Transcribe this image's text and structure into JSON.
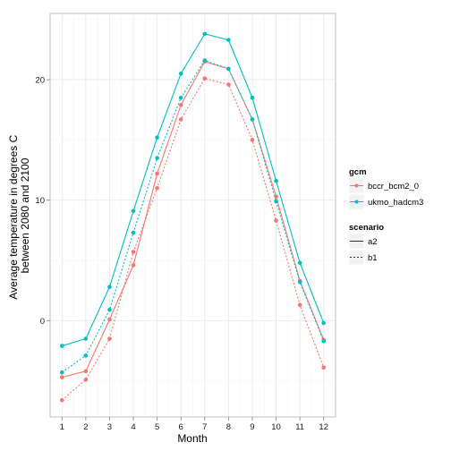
{
  "chart_data": {
    "type": "line",
    "title": "",
    "xlabel": "Month",
    "ylabel_lines": [
      "Average temperature in degrees C",
      "between 2080 and 2100"
    ],
    "x": [
      1,
      2,
      3,
      4,
      5,
      6,
      7,
      8,
      9,
      10,
      11,
      12
    ],
    "x_tick_labels": [
      "1",
      "2",
      "3",
      "4",
      "5",
      "6",
      "7",
      "8",
      "9",
      "10",
      "11",
      "12"
    ],
    "xlim": [
      0.5,
      12.5
    ],
    "ylim": [
      -8,
      25.5
    ],
    "y_ticks": [
      0,
      10,
      20
    ],
    "y_tick_labels": [
      "0",
      "10",
      "20"
    ],
    "grid": true,
    "legend_position": "right",
    "colors": {
      "bccr_bcm2_0": "#F8766D",
      "ukmo_hadcm3": "#00BFC4",
      "panel_background": "#FFFFFF",
      "panel_border": "#B3B3B3",
      "grid_major": "#E8E8E8",
      "grid_minor": "#F5F5F5"
    },
    "series": [
      {
        "name": "bccr_bcm2_0 a2",
        "gcm": "bccr_bcm2_0",
        "scenario": "a2",
        "values": [
          -4.7,
          -4.2,
          0.1,
          4.6,
          12.2,
          17.9,
          21.5,
          20.9,
          16.7,
          10.3,
          3.3,
          -1.6
        ]
      },
      {
        "name": "bccr_bcm2_0 b1",
        "gcm": "bccr_bcm2_0",
        "scenario": "b1",
        "values": [
          -6.6,
          -4.9,
          -1.5,
          5.7,
          11.0,
          16.7,
          20.1,
          19.6,
          15.0,
          8.3,
          1.3,
          -3.9
        ]
      },
      {
        "name": "ukmo_hadcm3 a2",
        "gcm": "ukmo_hadcm3",
        "scenario": "a2",
        "values": [
          -2.1,
          -1.5,
          2.8,
          9.1,
          15.2,
          20.5,
          23.8,
          23.3,
          18.5,
          11.6,
          4.8,
          -0.2
        ]
      },
      {
        "name": "ukmo_hadcm3 b1",
        "gcm": "ukmo_hadcm3",
        "scenario": "b1",
        "values": [
          -4.3,
          -2.9,
          0.9,
          7.3,
          13.5,
          18.5,
          21.6,
          20.9,
          16.7,
          9.9,
          3.2,
          -1.7
        ]
      }
    ],
    "legend": {
      "gcm": {
        "title": "gcm",
        "entries": [
          {
            "label": "bccr_bcm2_0",
            "key": "bccr_bcm2_0"
          },
          {
            "label": "ukmo_hadcm3",
            "key": "ukmo_hadcm3"
          }
        ]
      },
      "scenario": {
        "title": "scenario",
        "entries": [
          {
            "label": "a2",
            "linetype": "solid"
          },
          {
            "label": "b1",
            "linetype": "dotted"
          }
        ]
      }
    }
  }
}
